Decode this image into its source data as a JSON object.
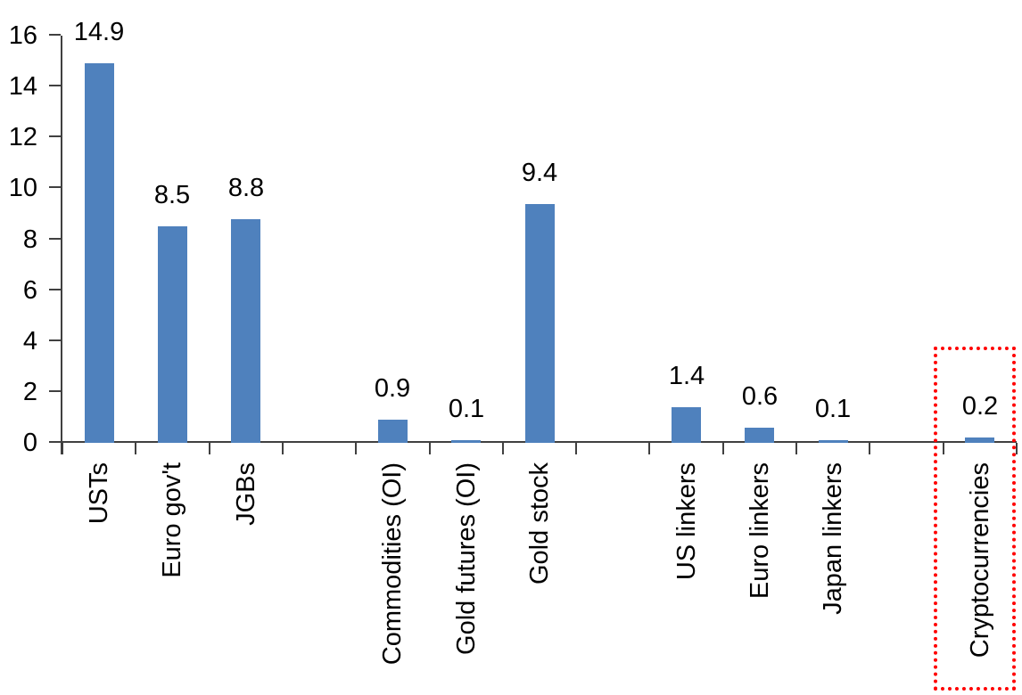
{
  "chart_data": {
    "type": "bar",
    "title": "",
    "xlabel": "",
    "ylabel": "",
    "categories": [
      "USTs",
      "Euro gov't",
      "JGBs",
      "",
      "Commodities (OI)",
      "Gold futures (OI)",
      "Gold stock",
      "",
      "US linkers",
      "Euro linkers",
      "Japan linkers",
      "",
      "Cryptocurrencies"
    ],
    "values": [
      14.9,
      8.5,
      8.8,
      null,
      0.9,
      0.1,
      9.4,
      null,
      1.4,
      0.6,
      0.1,
      null,
      0.2
    ],
    "data_labels": [
      "14.9",
      "8.5",
      "8.8",
      null,
      "0.9",
      "0.1",
      "9.4",
      null,
      "1.4",
      "0.6",
      "0.1",
      null,
      "0.2"
    ],
    "y_ticks": [
      0,
      2,
      4,
      6,
      8,
      10,
      12,
      14,
      16
    ],
    "ylim": [
      0,
      16
    ],
    "grid": false,
    "legend": false,
    "bar_color": "#4F81BD",
    "axis_color": "#404040",
    "text_color": "#000000",
    "highlight": {
      "category": "Cryptocurrencies",
      "shape": "dotted-rectangle",
      "color": "#FF0000"
    }
  }
}
